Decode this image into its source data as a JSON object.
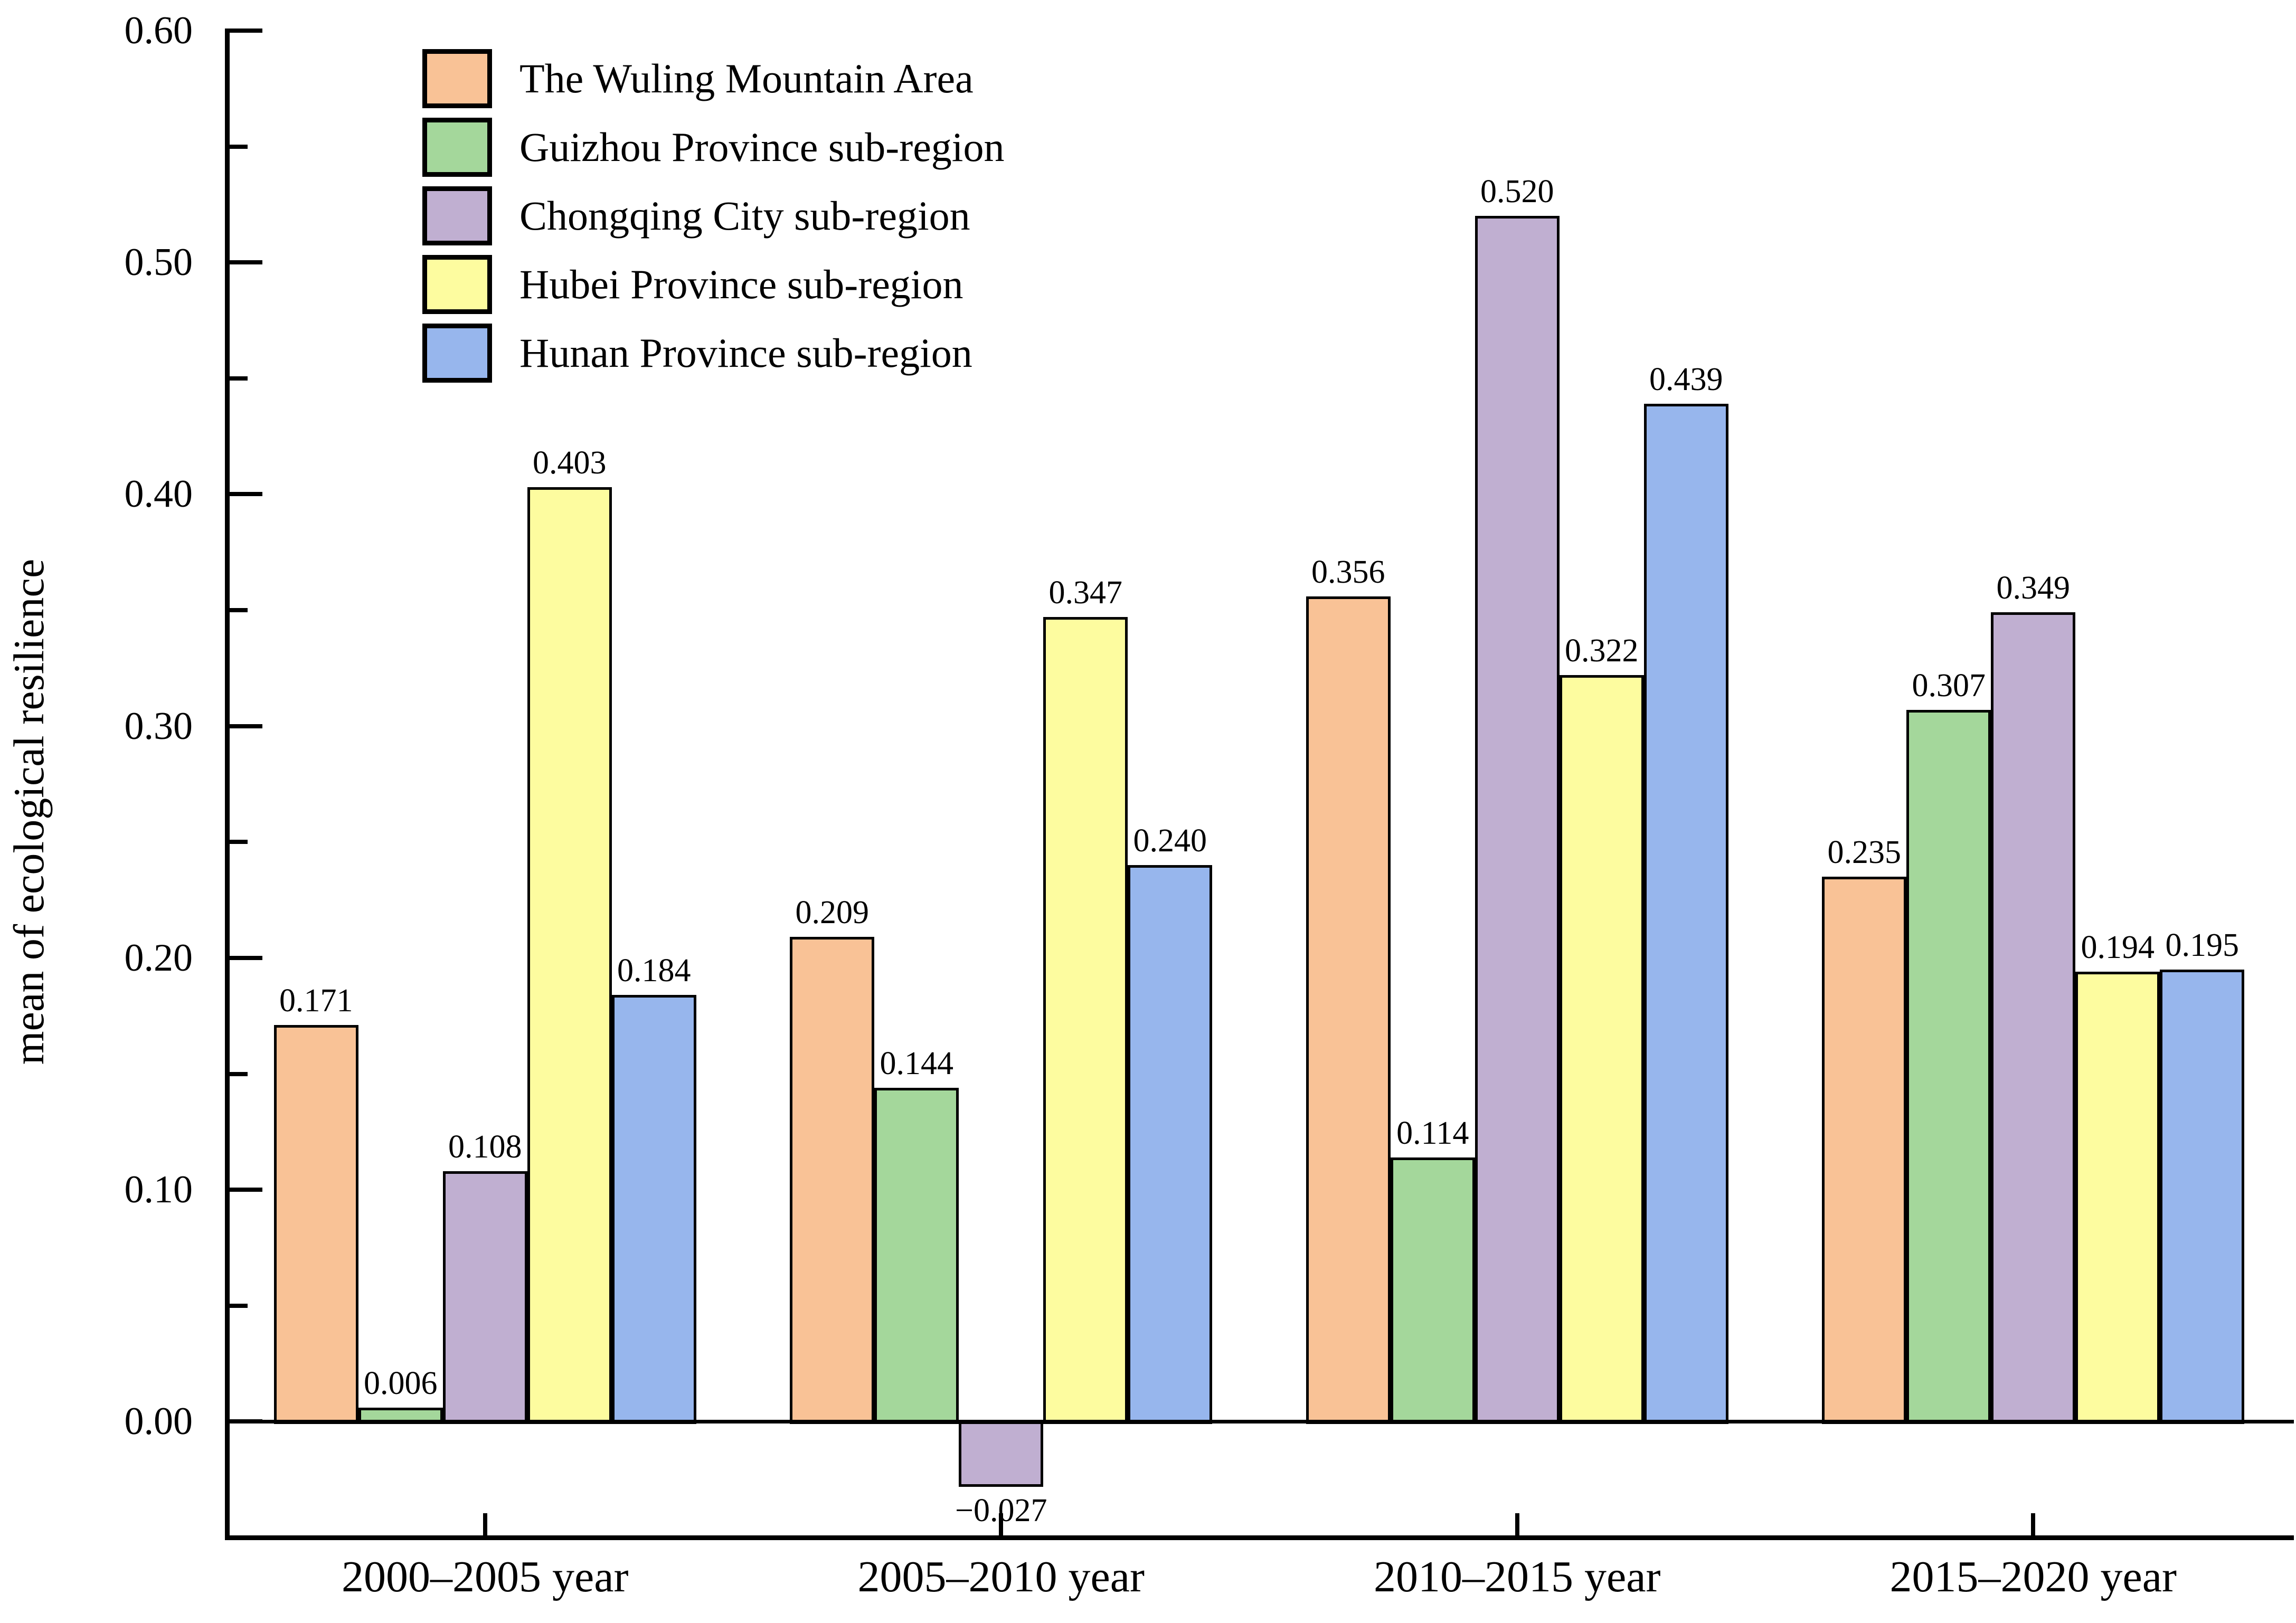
{
  "chart_data": {
    "type": "bar",
    "title": "",
    "xlabel": "",
    "ylabel": "mean of ecological resilience",
    "categories": [
      "2000–2005 year",
      "2005–2010 year",
      "2010–2015 year",
      "2015–2020 year"
    ],
    "series": [
      {
        "name": "The Wuling Mountain Area",
        "color": "#F9C296",
        "values": [
          0.171,
          0.209,
          0.356,
          0.235
        ],
        "labels": [
          "0.171",
          "0.209",
          "0.356",
          "0.235"
        ]
      },
      {
        "name": "Guizhou Province sub-region",
        "color": "#A4D79B",
        "values": [
          0.006,
          0.144,
          0.114,
          0.307
        ],
        "labels": [
          "0.006",
          "0.144",
          "0.114",
          "0.307"
        ]
      },
      {
        "name": "Chongqing City sub-region",
        "color": "#C0AFD1",
        "values": [
          0.108,
          -0.027,
          0.52,
          0.349
        ],
        "labels": [
          "0.108",
          "−0.027",
          "0.520",
          "0.349"
        ]
      },
      {
        "name": "Hubei Province sub-region",
        "color": "#FDFC9F",
        "values": [
          0.403,
          0.347,
          0.322,
          0.194
        ],
        "labels": [
          "0.403",
          "0.347",
          "0.322",
          "0.194"
        ]
      },
      {
        "name": "Hunan Province sub-region",
        "color": "#97B6ED",
        "values": [
          0.184,
          0.24,
          0.439,
          0.195
        ],
        "labels": [
          "0.184",
          "0.240",
          "0.439",
          "0.195"
        ]
      }
    ],
    "ylim": [
      -0.05,
      0.6
    ],
    "ytick_values": [
      0.0,
      0.1,
      0.2,
      0.3,
      0.4,
      0.5,
      0.6
    ],
    "ytick_labels": [
      "0.00",
      "0.10",
      "0.20",
      "0.30",
      "0.40",
      "0.50",
      "0.60"
    ],
    "ytick_minor_values": [
      0.05,
      0.15,
      0.25,
      0.35,
      0.45,
      0.55
    ],
    "grid": false,
    "legend_position": "top-left",
    "axis_color": "#000000",
    "bar_outline_color": "#000000",
    "background_color": "#FFFFFF"
  }
}
